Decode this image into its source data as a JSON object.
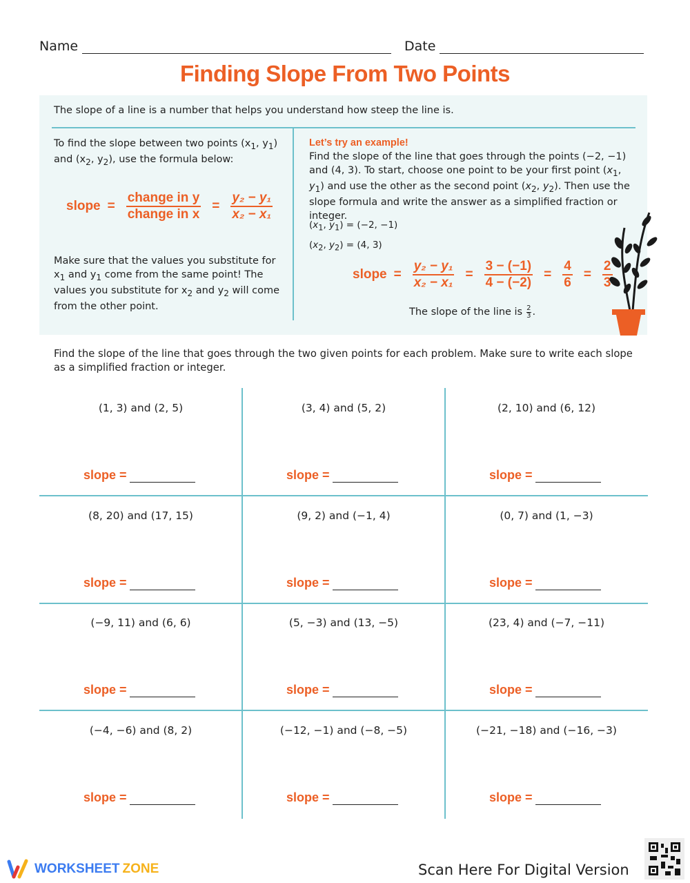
{
  "header": {
    "name_label": "Name",
    "date_label": "Date"
  },
  "title": "Finding Slope From Two Points",
  "intro": "The slope of a line is a number that helps you understand how steep the line is.",
  "left": {
    "instruction_html": "To find the slope between two points (x<sub>1</sub>, y<sub>1</sub>) and (x<sub>2</sub>, y<sub>2</sub>), use the formula below:",
    "slope_label": "slope",
    "eq": "=",
    "change_y": "change in y",
    "change_x": "change in x",
    "y_num": "y₂ − y₁",
    "x_den": "x₂ − x₁",
    "note_html": "Make sure that the values you substitute for x<sub>1</sub> and y<sub>1</sub> come from the same point! The values you substitute for x<sub>2</sub> and y<sub>2</sub> will come from the other point."
  },
  "example": {
    "heading": "Let’s try an example!",
    "text_html": "Find the slope of the line that goes through the points (−2, −1) and (4, 3). To start, choose one point to be your first point (<i>x</i><sub>1</sub>, <i>y</i><sub>1</sub>) and use the other as the second point (<i>x</i><sub>2</sub>, <i>y</i><sub>2</sub>). Then use the slope formula and write the answer as a simplified fraction or integer.",
    "p1_html": "(<i>x</i><sub>1</sub>, <i>y</i><sub>1</sub>) = (−2, −1)",
    "p2_html": "(<i>x</i><sub>2</sub>, <i>y</i><sub>2</sub>) = (4, 3)",
    "slope_label": "slope",
    "f1n": "y₂ − y₁",
    "f1d": "x₂ − x₁",
    "f2n": "3 − (−1)",
    "f2d": "4 − (−2)",
    "f3n": "4",
    "f3d": "6",
    "f4n": "2",
    "f4d": "3",
    "conclusion": "The slope of the line is",
    "ans_n": "2",
    "ans_d": "3"
  },
  "directions": "Find the slope of the line that goes through the two given points for each problem. Make sure to write each slope as a simplified fraction or integer.",
  "slope_prompt": "slope =",
  "problems": [
    "(1, 3) and (2, 5)",
    "(3, 4) and (5, 2)",
    "(2, 10) and (6, 12)",
    "(8, 20) and (17, 15)",
    "(9, 2) and (−1, 4)",
    "(0, 7) and (1, −3)",
    "(−9, 11) and (6, 6)",
    "(5, −3) and (13, −5)",
    "(23, 4) and (−7, −11)",
    "(−4, −6) and (8, 2)",
    "(−12, −1) and (−8, −5)",
    "(−21, −18) and (−16, −3)"
  ],
  "footer": {
    "brand_a": "WORKSHEET",
    "brand_b": "ZONE",
    "scan": "Scan Here For Digital Version"
  },
  "colors": {
    "accent": "#ec5f25",
    "teal": "#6cc0cb",
    "panel": "#eef7f7"
  }
}
